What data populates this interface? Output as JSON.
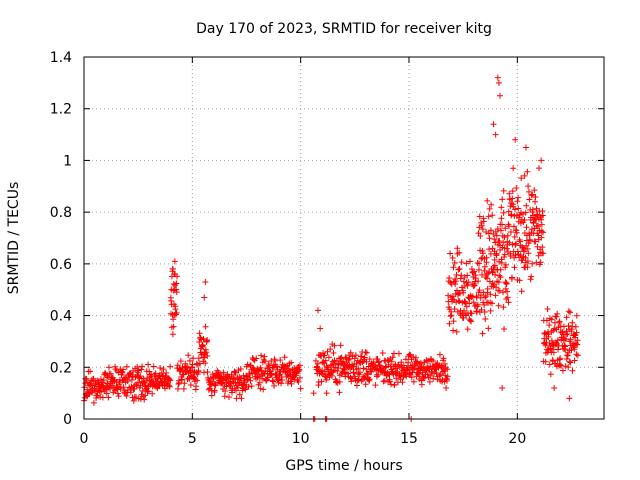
{
  "chart_data": {
    "type": "scatter",
    "title": "Day 170 of 2023, SRMTID for receiver kitg",
    "xlabel": "GPS time / hours",
    "ylabel": "SRMTID / TECUs",
    "xlim": [
      0,
      24
    ],
    "ylim": [
      0,
      1.4
    ],
    "xticks": [
      0,
      5,
      10,
      15,
      20
    ],
    "yticks": [
      0,
      0.2,
      0.4,
      0.6,
      0.8,
      1,
      1.2,
      1.4
    ],
    "xtick_labels": [
      "0",
      "5",
      "10",
      "15",
      "20"
    ],
    "ytick_labels": [
      "0",
      "0.2",
      "0.4",
      "0.6",
      "0.8",
      "1",
      "1.2",
      "1.4"
    ],
    "grid": true,
    "series": [
      {
        "name": "SRMTID",
        "color": "#ff0000",
        "marker": "plus",
        "segments": [
          {
            "start": 0.0,
            "end": 0.9,
            "base": 0.12,
            "spread": 0.05,
            "count": 60
          },
          {
            "start": 0.9,
            "end": 3.2,
            "base": 0.14,
            "spread": 0.06,
            "count": 150
          },
          {
            "start": 3.2,
            "end": 4.0,
            "base": 0.15,
            "spread": 0.05,
            "count": 50
          },
          {
            "start": 4.0,
            "end": 4.3,
            "base": 0.46,
            "spread": 0.12,
            "count": 30
          },
          {
            "start": 4.3,
            "end": 5.3,
            "base": 0.18,
            "spread": 0.06,
            "count": 60
          },
          {
            "start": 5.3,
            "end": 5.7,
            "base": 0.26,
            "spread": 0.1,
            "count": 30
          },
          {
            "start": 5.7,
            "end": 7.5,
            "base": 0.14,
            "spread": 0.05,
            "count": 110
          },
          {
            "start": 7.5,
            "end": 10.0,
            "base": 0.18,
            "spread": 0.05,
            "count": 150
          },
          {
            "start": 10.7,
            "end": 13.2,
            "base": 0.2,
            "spread": 0.07,
            "count": 160
          },
          {
            "start": 13.2,
            "end": 16.8,
            "base": 0.19,
            "spread": 0.05,
            "count": 220
          },
          {
            "start": 16.8,
            "end": 18.2,
            "base": 0.5,
            "spread": 0.14,
            "count": 110
          },
          {
            "start": 18.2,
            "end": 19.6,
            "base": 0.6,
            "spread": 0.22,
            "count": 140
          },
          {
            "start": 19.6,
            "end": 21.2,
            "base": 0.72,
            "spread": 0.18,
            "count": 150
          },
          {
            "start": 21.2,
            "end": 22.8,
            "base": 0.3,
            "spread": 0.1,
            "count": 130
          }
        ],
        "peaks": [
          {
            "x": 4.1,
            "y": 0.58
          },
          {
            "x": 4.2,
            "y": 0.56
          },
          {
            "x": 5.6,
            "y": 0.53
          },
          {
            "x": 5.55,
            "y": 0.47
          },
          {
            "x": 19.1,
            "y": 1.32
          },
          {
            "x": 19.15,
            "y": 1.3
          },
          {
            "x": 19.2,
            "y": 1.25
          },
          {
            "x": 18.9,
            "y": 1.14
          },
          {
            "x": 19.0,
            "y": 1.1
          },
          {
            "x": 19.9,
            "y": 1.08
          },
          {
            "x": 20.4,
            "y": 1.05
          },
          {
            "x": 21.1,
            "y": 1.0
          },
          {
            "x": 21.0,
            "y": 0.97
          },
          {
            "x": 10.8,
            "y": 0.42
          },
          {
            "x": 10.6,
            "y": 0.1
          },
          {
            "x": 10.9,
            "y": 0.35
          },
          {
            "x": 11.2,
            "y": 0.1
          },
          {
            "x": 15.1,
            "y": 0.0
          },
          {
            "x": 10.6,
            "y": 0.0
          },
          {
            "x": 10.65,
            "y": 0.0
          },
          {
            "x": 11.15,
            "y": 0.0
          },
          {
            "x": 11.2,
            "y": 0.0
          },
          {
            "x": 19.3,
            "y": 0.12
          },
          {
            "x": 21.7,
            "y": 0.12
          },
          {
            "x": 22.4,
            "y": 0.08
          }
        ]
      }
    ]
  }
}
